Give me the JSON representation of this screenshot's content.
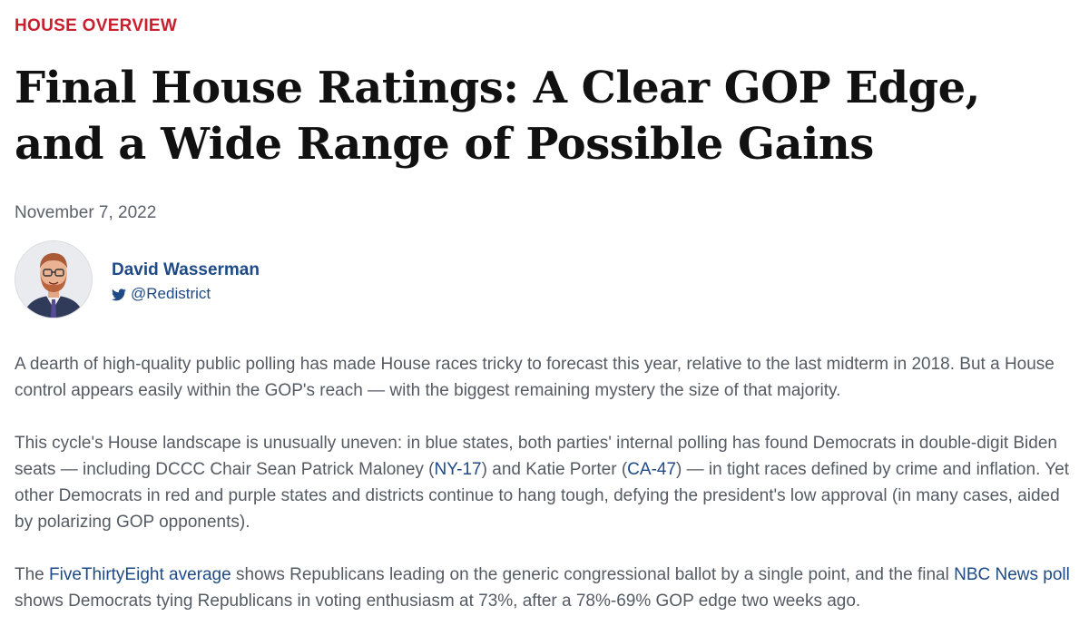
{
  "section_label": "HOUSE OVERVIEW",
  "headline": "Final House Ratings: A Clear GOP Edge, and a Wide Range of Possible Gains",
  "date": "November 7, 2022",
  "author": {
    "name": "David Wasserman",
    "handle": "@Redistrict",
    "handle_icon": "twitter-icon"
  },
  "paragraphs": {
    "p1": "A dearth of high-quality public polling has made House races tricky to forecast this year, relative to the last midterm in 2018. But a House control appears easily within the GOP's reach — with the biggest remaining mystery the size of that majority.",
    "p2": {
      "t1": "This cycle's House landscape is unusually uneven: in blue states, both parties' internal polling has found Democrats in double-digit Biden seats — including DCCC Chair Sean Patrick Maloney (",
      "link1": "NY-17",
      "t2": ") and Katie Porter (",
      "link2": "CA-47",
      "t3": ") — in tight races defined by crime and inflation. Yet other Democrats in red and purple states and districts continue to hang tough, defying the president's low approval (in many cases, aided by polarizing GOP opponents)."
    },
    "p3": {
      "t1": "The ",
      "link1": "FiveThirtyEight average",
      "t2": " shows Republicans leading on the generic congressional ballot by a single point, and the final ",
      "link2": "NBC News poll",
      "t3": " shows Democrats tying Republicans in voting enthusiasm at 73%, after a 78%-69% GOP edge two weeks ago."
    }
  },
  "colors": {
    "section_label": "#c8202f",
    "headline": "#111111",
    "body_text": "#555b63",
    "link": "#1e4a86"
  }
}
